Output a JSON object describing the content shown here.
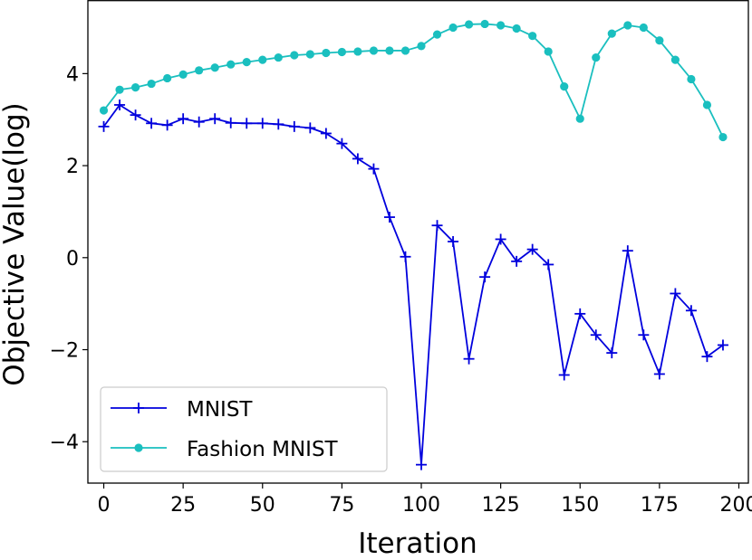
{
  "chart_data": {
    "type": "line",
    "title": "",
    "xlabel": "Iteration",
    "ylabel": "Objective Value(log)",
    "xlim": [
      -5,
      203
    ],
    "ylim": [
      -4.9,
      5.6
    ],
    "x_ticks": [
      0,
      25,
      50,
      75,
      100,
      125,
      150,
      175,
      200
    ],
    "y_ticks": [
      -4,
      -2,
      0,
      2,
      4
    ],
    "x_tick_labels": [
      "0",
      "25",
      "50",
      "75",
      "100",
      "125",
      "150",
      "175",
      "200"
    ],
    "y_tick_labels": [
      "−4",
      "−2",
      "0",
      "2",
      "4"
    ],
    "legend_position": "lower-left",
    "x": [
      0,
      5,
      10,
      15,
      20,
      25,
      30,
      35,
      40,
      45,
      50,
      55,
      60,
      65,
      70,
      75,
      80,
      85,
      90,
      95,
      100,
      105,
      110,
      115,
      120,
      125,
      130,
      135,
      140,
      145,
      150,
      155,
      160,
      165,
      170,
      175,
      180,
      185,
      190,
      195
    ],
    "series": [
      {
        "name": "MNIST",
        "color": "#0000dd",
        "marker": "plus",
        "values": [
          2.85,
          3.32,
          3.1,
          2.92,
          2.88,
          3.02,
          2.95,
          3.02,
          2.93,
          2.92,
          2.92,
          2.9,
          2.85,
          2.82,
          2.7,
          2.48,
          2.15,
          1.93,
          0.88,
          0.02,
          -4.5,
          0.7,
          0.35,
          -2.2,
          -0.42,
          0.4,
          -0.08,
          0.18,
          -0.15,
          -2.55,
          -1.22,
          -1.68,
          -2.07,
          0.15,
          -1.68,
          -2.53,
          -0.78,
          -1.15,
          -2.15,
          -1.9
        ]
      },
      {
        "name": "Fashion MNIST",
        "color": "#1abfbf",
        "marker": "circle",
        "values": [
          3.2,
          3.65,
          3.7,
          3.78,
          3.9,
          3.98,
          4.07,
          4.13,
          4.2,
          4.25,
          4.3,
          4.35,
          4.4,
          4.42,
          4.45,
          4.47,
          4.48,
          4.5,
          4.5,
          4.5,
          4.6,
          4.85,
          5.0,
          5.07,
          5.08,
          5.05,
          4.98,
          4.82,
          4.48,
          3.72,
          3.02,
          4.35,
          4.87,
          5.05,
          5.0,
          4.72,
          4.3,
          3.88,
          3.32,
          2.62
        ]
      }
    ]
  }
}
